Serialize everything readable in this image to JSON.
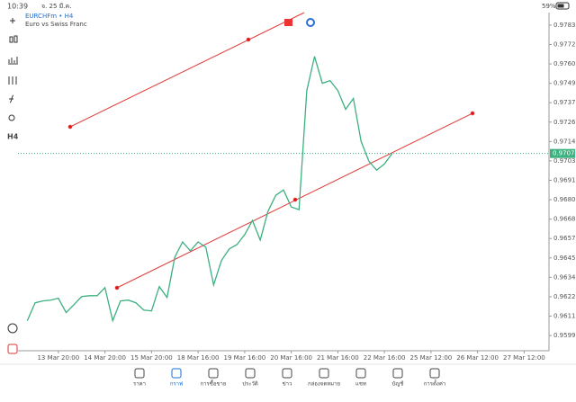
{
  "status_bar": {
    "time": "10:39",
    "date": "จ. 25 มี.ค.",
    "battery": "59%"
  },
  "header": {
    "symbol": "EURCHFm • H4",
    "description": "Euro vs Swiss Franc"
  },
  "toolbar": {
    "timeframe": "H4"
  },
  "chart_data": {
    "type": "line",
    "x": [
      0,
      1,
      2,
      3,
      4,
      5,
      6,
      7,
      8,
      9,
      10,
      11,
      12,
      13,
      14,
      15,
      16,
      17,
      18,
      19,
      20,
      21,
      22,
      23,
      24,
      25,
      26,
      27,
      28,
      29,
      30,
      31,
      32,
      33,
      34,
      35,
      36,
      37,
      38,
      39,
      40,
      41,
      42,
      43,
      44,
      45,
      46,
      47
    ],
    "series": [
      {
        "color": "#3cb07f",
        "values": [
          0.96083,
          0.96189,
          0.962,
          0.96205,
          0.96216,
          0.96131,
          0.96178,
          0.96226,
          0.96231,
          0.96231,
          0.96279,
          0.96083,
          0.962,
          0.96205,
          0.96189,
          0.96146,
          0.96141,
          0.96285,
          0.96221,
          0.9646,
          0.9655,
          0.96497,
          0.9655,
          0.96518,
          0.96295,
          0.96439,
          0.96508,
          0.96534,
          0.96593,
          0.96677,
          0.96561,
          0.96731,
          0.96826,
          0.96858,
          0.96757,
          0.96741,
          0.97447,
          0.97649,
          0.9749,
          0.97506,
          0.97447,
          0.97336,
          0.974,
          0.97145,
          0.97028,
          0.96975,
          0.97012,
          0.97074
        ]
      }
    ],
    "current_price": 0.97074,
    "xlim": [
      -1.2,
      67.2
    ],
    "xticks": [
      {
        "value": 4,
        "label": "13 Mar 20:00"
      },
      {
        "value": 10,
        "label": "14 Mar 20:00"
      },
      {
        "value": 16,
        "label": "15 Mar 20:00"
      },
      {
        "value": 22,
        "label": "18 Mar 16:00"
      },
      {
        "value": 28,
        "label": "19 Mar 16:00"
      },
      {
        "value": 34,
        "label": "20 Mar 16:00"
      },
      {
        "value": 40,
        "label": "21 Mar 16:00"
      },
      {
        "value": 46,
        "label": "22 Mar 16:00"
      },
      {
        "value": 52,
        "label": "25 Mar 12:00"
      },
      {
        "value": 58,
        "label": "26 Mar 12:00"
      },
      {
        "value": 64,
        "label": "27 Mar 12:00"
      }
    ],
    "ylim": [
      0.95905,
      0.97909
    ],
    "yticks": [
      0.97835,
      {
        "value": 0.9772,
        "label": "0.97720"
      },
      0.97605,
      {
        "value": 0.9749,
        "label": "0.97490"
      },
      0.97375,
      {
        "value": 0.9726,
        "label": "0.97260"
      },
      0.97145,
      {
        "value": 0.9703,
        "label": "0.97030"
      },
      0.96915,
      {
        "value": 0.968,
        "label": "0.96800"
      },
      0.96685,
      {
        "value": 0.9657,
        "label": "0.96570"
      },
      0.96455,
      {
        "value": 0.9634,
        "label": "0.96340"
      },
      0.96225,
      {
        "value": 0.9611,
        "label": "0.96110"
      },
      0.95995
    ]
  },
  "tab_bar": {
    "tabs": [
      "ราคา",
      "กราฟ",
      "การซื้อขาย",
      "ประวัติ",
      "ข่าว",
      "กล่องจดหมาย",
      "แชท",
      "บัญชี",
      "การตั้งค่า"
    ],
    "active": 1
  }
}
